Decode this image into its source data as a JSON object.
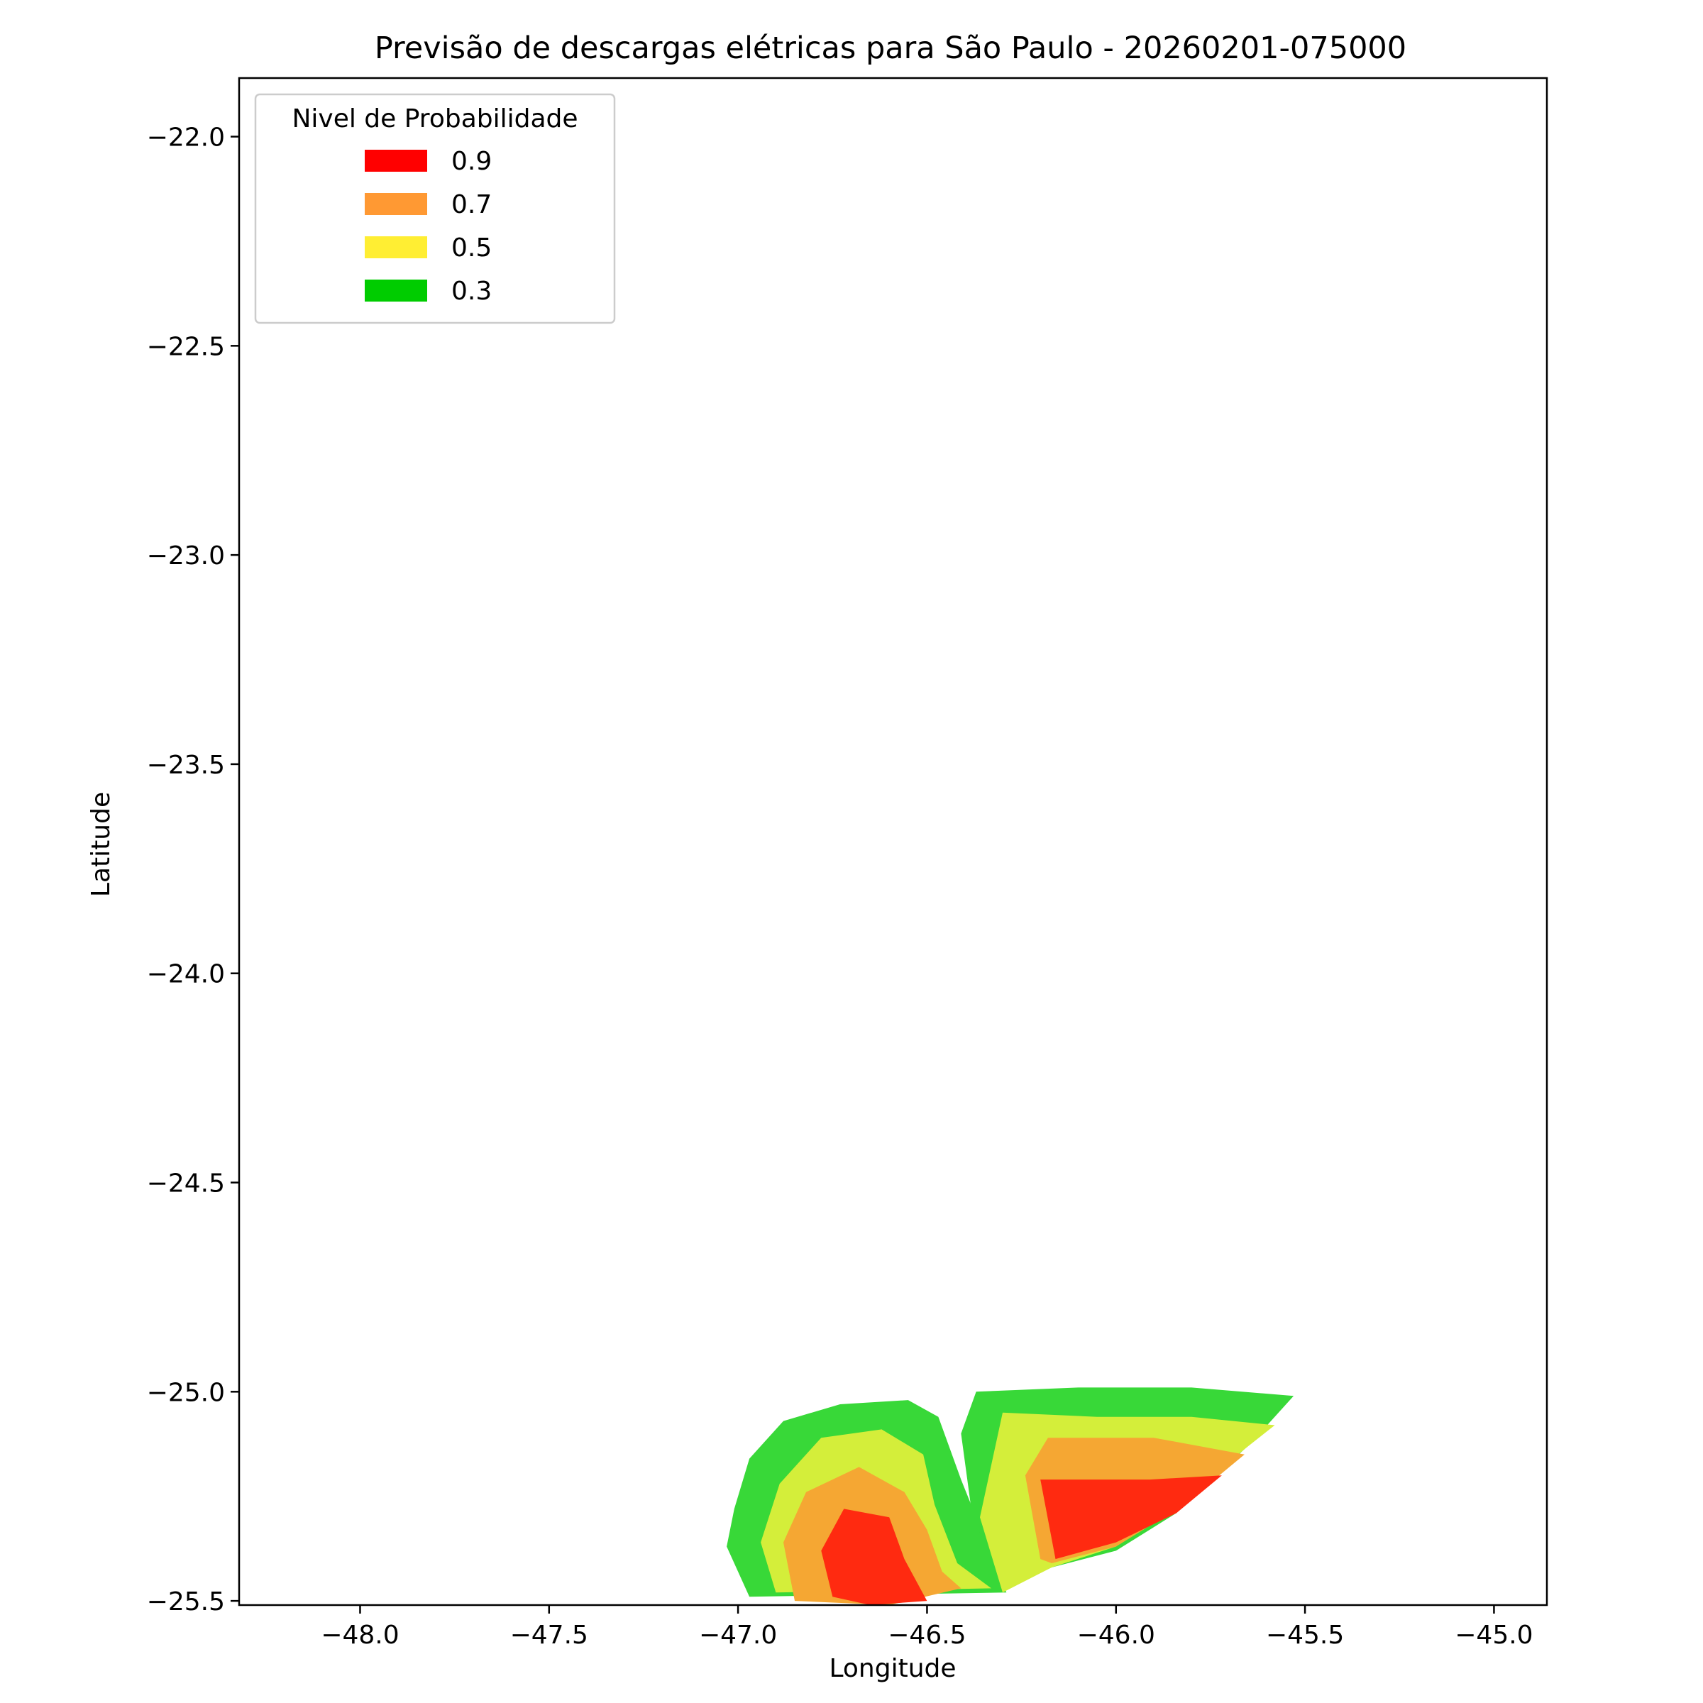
{
  "chart_data": {
    "type": "contour",
    "title": "Previsão de descargas elétricas para São Paulo - 20260201-075000",
    "xlabel": "Longitude",
    "ylabel": "Latitude",
    "xlim": [
      -48.32,
      -44.86
    ],
    "ylim": [
      -25.51,
      -21.86
    ],
    "xticks": [
      -48.0,
      -47.5,
      -47.0,
      -46.5,
      -46.0,
      -45.5,
      -45.0
    ],
    "xtick_labels": [
      "−48.0",
      "−47.5",
      "−47.0",
      "−46.5",
      "−46.0",
      "−45.5",
      "−45.0"
    ],
    "yticks": [
      -22.0,
      -22.5,
      -23.0,
      -23.5,
      -24.0,
      -24.5,
      -25.0,
      -25.5
    ],
    "ytick_labels": [
      "−22.0",
      "−22.5",
      "−23.0",
      "−23.5",
      "−24.0",
      "−24.5",
      "−25.0",
      "−25.5"
    ],
    "grid": false,
    "legend": {
      "title": "Nivel de Probabilidade",
      "placement": "upper-left",
      "entries": [
        {
          "label": "0.9",
          "color": "#ff0000"
        },
        {
          "label": "0.7",
          "color": "#ff9933"
        },
        {
          "label": "0.5",
          "color": "#ffee33"
        },
        {
          "label": "0.3",
          "color": "#00cc00"
        }
      ]
    },
    "contour_colors": {
      "0.3": "#38d838",
      "0.5": "#d4ee3a",
      "0.7": "#f5a733",
      "0.9": "#ff2a10"
    },
    "regions": [
      {
        "level": "0.3",
        "polygon": [
          [
            -46.97,
            -25.49
          ],
          [
            -47.03,
            -25.37
          ],
          [
            -47.01,
            -25.28
          ],
          [
            -46.97,
            -25.16
          ],
          [
            -46.88,
            -25.07
          ],
          [
            -46.73,
            -25.03
          ],
          [
            -46.55,
            -25.02
          ],
          [
            -46.47,
            -25.06
          ],
          [
            -46.41,
            -25.21
          ],
          [
            -46.29,
            -25.48
          ]
        ]
      },
      {
        "level": "0.3",
        "polygon": [
          [
            -46.41,
            -25.1
          ],
          [
            -46.37,
            -25.0
          ],
          [
            -46.1,
            -24.99
          ],
          [
            -45.8,
            -24.99
          ],
          [
            -45.53,
            -25.01
          ],
          [
            -45.64,
            -25.12
          ],
          [
            -45.84,
            -25.29
          ],
          [
            -46.0,
            -25.38
          ],
          [
            -46.17,
            -25.42
          ],
          [
            -46.29,
            -25.47
          ],
          [
            -46.38,
            -25.3
          ]
        ]
      },
      {
        "level": "0.5",
        "polygon": [
          [
            -46.9,
            -25.48
          ],
          [
            -46.94,
            -25.36
          ],
          [
            -46.89,
            -25.22
          ],
          [
            -46.78,
            -25.11
          ],
          [
            -46.62,
            -25.09
          ],
          [
            -46.51,
            -25.15
          ],
          [
            -46.48,
            -25.27
          ],
          [
            -46.42,
            -25.41
          ],
          [
            -46.33,
            -25.47
          ]
        ]
      },
      {
        "level": "0.5",
        "polygon": [
          [
            -46.3,
            -25.48
          ],
          [
            -46.36,
            -25.3
          ],
          [
            -46.3,
            -25.05
          ],
          [
            -46.05,
            -25.06
          ],
          [
            -45.8,
            -25.06
          ],
          [
            -45.58,
            -25.08
          ],
          [
            -45.65,
            -25.13
          ],
          [
            -45.84,
            -25.27
          ],
          [
            -46.0,
            -25.37
          ],
          [
            -46.17,
            -25.42
          ]
        ]
      },
      {
        "level": "0.7",
        "polygon": [
          [
            -46.85,
            -25.5
          ],
          [
            -46.88,
            -25.36
          ],
          [
            -46.82,
            -25.24
          ],
          [
            -46.68,
            -25.18
          ],
          [
            -46.56,
            -25.24
          ],
          [
            -46.5,
            -25.33
          ],
          [
            -46.46,
            -25.43
          ],
          [
            -46.41,
            -25.47
          ],
          [
            -46.6,
            -25.51
          ]
        ]
      },
      {
        "level": "0.7",
        "polygon": [
          [
            -46.2,
            -25.4
          ],
          [
            -46.24,
            -25.2
          ],
          [
            -46.18,
            -25.11
          ],
          [
            -45.9,
            -25.11
          ],
          [
            -45.66,
            -25.15
          ],
          [
            -45.82,
            -25.27
          ],
          [
            -46.0,
            -25.37
          ],
          [
            -46.17,
            -25.41
          ]
        ]
      },
      {
        "level": "0.9",
        "polygon": [
          [
            -46.75,
            -25.49
          ],
          [
            -46.78,
            -25.38
          ],
          [
            -46.72,
            -25.28
          ],
          [
            -46.6,
            -25.3
          ],
          [
            -46.56,
            -25.4
          ],
          [
            -46.5,
            -25.5
          ],
          [
            -46.65,
            -25.51
          ]
        ]
      },
      {
        "level": "0.9",
        "polygon": [
          [
            -46.16,
            -25.4
          ],
          [
            -46.2,
            -25.21
          ],
          [
            -45.91,
            -25.21
          ],
          [
            -45.72,
            -25.2
          ],
          [
            -45.84,
            -25.29
          ],
          [
            -46.0,
            -25.36
          ]
        ]
      }
    ]
  }
}
